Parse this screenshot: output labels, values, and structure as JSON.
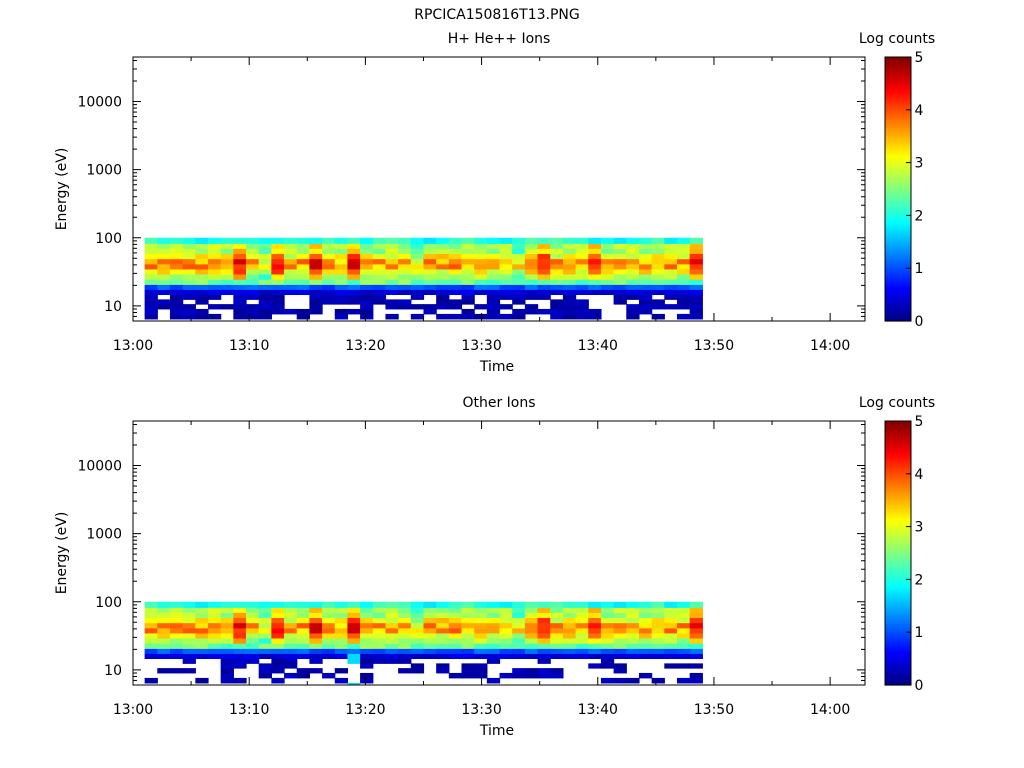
{
  "figure": {
    "title": "RPCICA150816T13.PNG"
  },
  "chart_data": [
    {
      "type": "heatmap",
      "title": "H+ He++ Ions",
      "xlabel": "Time",
      "ylabel": "Energy (eV)",
      "x_ticks": [
        "13:00",
        "13:10",
        "13:20",
        "13:30",
        "13:40",
        "13:50",
        "14:00"
      ],
      "xlim": [
        "13:00",
        "14:03"
      ],
      "data_time_range": [
        "13:01",
        "13:49"
      ],
      "y_scale": "log",
      "ylim": [
        6,
        45000
      ],
      "y_ticks": [
        "10",
        "100",
        "1000",
        "10000"
      ],
      "colorbar": {
        "label": "Log counts",
        "ticks": [
          "0",
          "1",
          "2",
          "3",
          "4",
          "5"
        ],
        "range": [
          0,
          5
        ]
      },
      "energy_bins_eV": [
        7,
        8.3,
        9.8,
        11.5,
        13.5,
        16,
        19,
        22.5,
        27,
        32,
        38,
        45,
        54,
        64,
        76,
        90
      ],
      "time_columns": 44,
      "bright_columns": [
        7,
        10,
        13,
        16,
        31,
        35,
        43
      ],
      "dim_columns": [
        9,
        21,
        29
      ]
    },
    {
      "type": "heatmap",
      "title": "Other Ions",
      "xlabel": "Time",
      "ylabel": "Energy (eV)",
      "x_ticks": [
        "13:00",
        "13:10",
        "13:20",
        "13:30",
        "13:40",
        "13:50",
        "14:00"
      ],
      "xlim": [
        "13:00",
        "14:03"
      ],
      "data_time_range": [
        "13:01",
        "13:49"
      ],
      "y_scale": "log",
      "ylim": [
        6,
        45000
      ],
      "y_ticks": [
        "10",
        "100",
        "1000",
        "10000"
      ],
      "colorbar": {
        "label": "Log counts",
        "ticks": [
          "0",
          "1",
          "2",
          "3",
          "4",
          "5"
        ],
        "range": [
          0,
          5
        ]
      },
      "energy_bins_eV": [
        7,
        8.3,
        9.8,
        11.5,
        13.5,
        16,
        19,
        22.5,
        27,
        32,
        38,
        45,
        54,
        64,
        76,
        90
      ],
      "time_columns": 44,
      "bright_columns": [
        7,
        10,
        13,
        16,
        31,
        35,
        43
      ],
      "dim_columns": [
        9,
        21,
        29
      ],
      "spike_column": 16
    }
  ]
}
